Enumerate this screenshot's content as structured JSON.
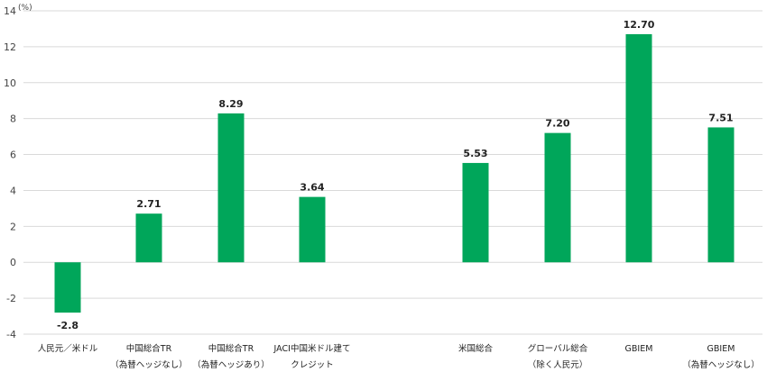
{
  "chart_data": {
    "type": "bar",
    "unit_label": "(%)",
    "categories": [
      [
        "人民元／米ドル"
      ],
      [
        "中国総合TR",
        "（為替ヘッジなし）"
      ],
      [
        "中国総合TR",
        "（為替ヘッジあり）"
      ],
      [
        "JACI中国米ドル建て",
        "クレジット"
      ],
      [
        "米国総合"
      ],
      [
        "グローバル総合",
        "（除く人民元）"
      ],
      [
        "GBIEM"
      ],
      [
        "GBIEM",
        "（為替ヘッジなし）"
      ]
    ],
    "values": [
      -2.8,
      2.71,
      8.29,
      3.64,
      5.53,
      7.2,
      12.7,
      7.51
    ],
    "value_labels": [
      "-2.8",
      "2.71",
      "8.29",
      "3.64",
      "5.53",
      "7.20",
      "12.70",
      "7.51"
    ],
    "yticks": [
      "-4",
      "-2",
      "0",
      "2",
      "4",
      "6",
      "8",
      "10",
      "12",
      "14"
    ],
    "ylim": [
      -4,
      14
    ],
    "grid": true,
    "bar_color": "#00a65a",
    "grid_color": "#d9d9d9"
  }
}
